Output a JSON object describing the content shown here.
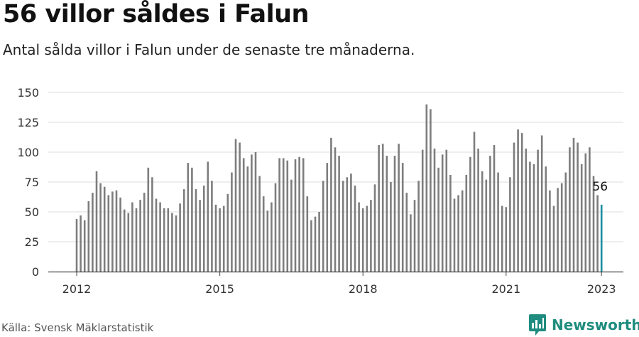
{
  "title": "56 villor såldes i Falun",
  "subtitle": "Antal sålda villor i Falun under de senaste tre månaderna.",
  "source": "Källa: Svensk Mäklarstatistik",
  "brand": {
    "name": "Newsworthy",
    "icon": "newsworthy-logo-icon",
    "color": "#1e8c7e"
  },
  "colors": {
    "bar": "#7d7d7d",
    "highlight": "#1a8fa0",
    "grid": "#dddddd",
    "axis": "#444444"
  },
  "chart_data": {
    "type": "bar",
    "title": "56 villor såldes i Falun",
    "ylim": [
      0,
      150
    ],
    "yticks": [
      0,
      25,
      50,
      75,
      100,
      125,
      150
    ],
    "xticks": [
      "2012",
      "2015",
      "2018",
      "2021",
      "2023"
    ],
    "grid": true,
    "highlight_label": "56",
    "series": [
      {
        "values": [
          44,
          47,
          43,
          59,
          66,
          84,
          74,
          71,
          64,
          67,
          68,
          62,
          52,
          49,
          58,
          53,
          60,
          66,
          87,
          79,
          61,
          58,
          53,
          53,
          49,
          47,
          57,
          69,
          91,
          87,
          69,
          60,
          72,
          92,
          76,
          56,
          53,
          55,
          65,
          83,
          111,
          108,
          95,
          88,
          98,
          100,
          80,
          63,
          51,
          58,
          74,
          95,
          95,
          93,
          77,
          94,
          96,
          95,
          63,
          43,
          46,
          50,
          76,
          91,
          112,
          104,
          97,
          76,
          79,
          82,
          72,
          58,
          53,
          55,
          60,
          73,
          106,
          107,
          97,
          75,
          97,
          107,
          91,
          66,
          48,
          60,
          76,
          102,
          140,
          136,
          103,
          87,
          98,
          102,
          81,
          61,
          64,
          68,
          81,
          96,
          117,
          103,
          84,
          77,
          97,
          106,
          83,
          55,
          54,
          79,
          108,
          119,
          116,
          103,
          92,
          90,
          102,
          114,
          88,
          68,
          55,
          70,
          74,
          83,
          104,
          112,
          108,
          90,
          99,
          104,
          80,
          64,
          56
        ]
      }
    ]
  }
}
